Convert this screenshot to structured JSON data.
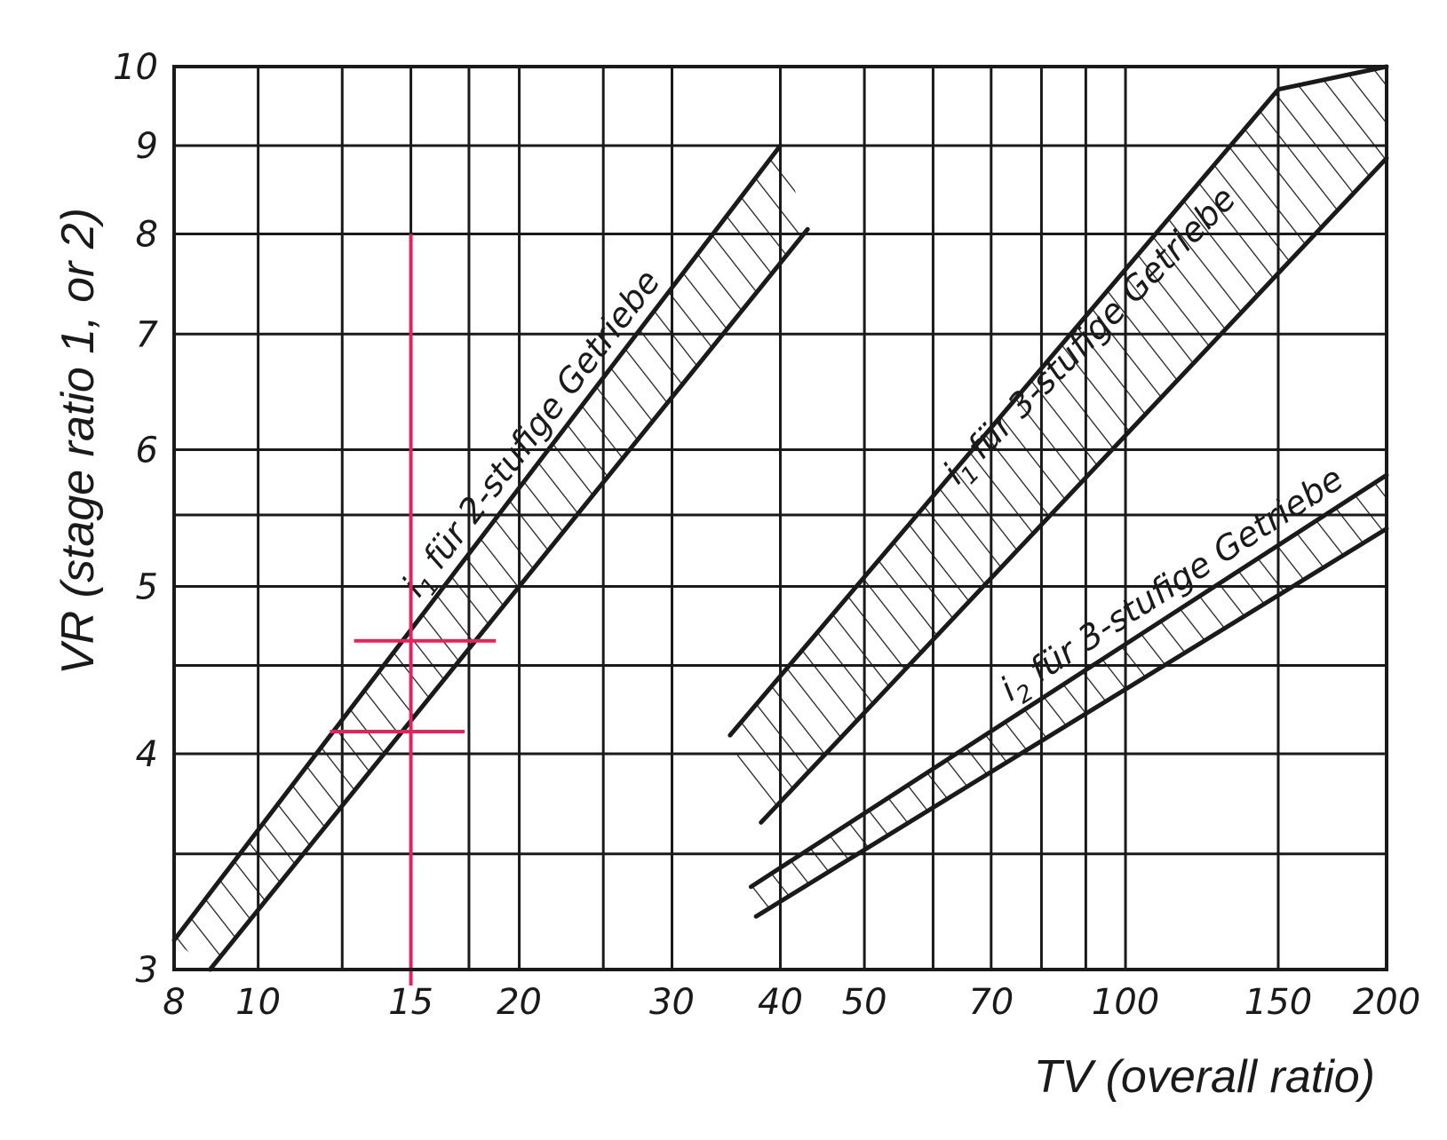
{
  "chart_data": {
    "type": "line",
    "subtype": "log-log nomogram with hatched bands",
    "xlabel": "TV (overall ratio)",
    "ylabel": "VR (stage ratio 1, or 2)",
    "xscale": "log",
    "yscale": "log",
    "xlim": [
      8,
      200
    ],
    "ylim": [
      3,
      10
    ],
    "xticks": [
      8,
      10,
      15,
      20,
      30,
      40,
      50,
      70,
      100,
      150,
      200
    ],
    "xtick_labels": [
      "8",
      "10",
      "15",
      "20",
      "30",
      "40",
      "50",
      "70",
      "100",
      "150",
      "200"
    ],
    "yticks": [
      3,
      4,
      5,
      6,
      7,
      8,
      9,
      10
    ],
    "ytick_labels": [
      "3",
      "4",
      "5",
      "6",
      "7",
      "8",
      "9",
      "10"
    ],
    "x_grid": [
      8,
      10,
      12.5,
      15,
      17.5,
      20,
      25,
      30,
      40,
      50,
      60,
      70,
      80,
      90,
      100,
      150,
      200
    ],
    "y_grid": [
      3,
      3.5,
      4,
      4.5,
      5,
      5.5,
      6,
      7,
      8,
      9,
      10
    ],
    "grid": true,
    "bands": [
      {
        "label_main": "i",
        "label_sub": "1",
        "label_text": " für 2-stufige Getriebe",
        "upper": [
          [
            8,
            3.12
          ],
          [
            40,
            9.0
          ]
        ],
        "lower": [
          [
            8.8,
            3.0
          ],
          [
            43,
            8.05
          ]
        ],
        "hatch": "diagonal"
      },
      {
        "label_main": "i",
        "label_sub": "1",
        "label_text": " für 3-stufige Getriebe",
        "upper": [
          [
            35,
            4.1
          ],
          [
            150,
            9.7
          ],
          [
            200,
            10.0
          ]
        ],
        "lower": [
          [
            38,
            3.65
          ],
          [
            200,
            8.85
          ]
        ],
        "hatch": "diagonal"
      },
      {
        "label_main": "i",
        "label_sub": "2",
        "label_text": " für 3-stufige Getriebe",
        "upper": [
          [
            37,
            3.35
          ],
          [
            200,
            5.8
          ]
        ],
        "lower": [
          [
            37.5,
            3.22
          ],
          [
            200,
            5.4
          ]
        ],
        "hatch": "diagonal"
      }
    ],
    "annotations": [
      {
        "type": "vline",
        "x": 15,
        "y_range": [
          3,
          8.0
        ],
        "color": "#e0245e"
      },
      {
        "type": "hline",
        "y": 4.65,
        "x_range": [
          12.9,
          18.8
        ],
        "color": "#e0245e"
      },
      {
        "type": "hline",
        "y": 4.12,
        "x_range": [
          12.1,
          17.3
        ],
        "color": "#e0245e"
      }
    ]
  }
}
